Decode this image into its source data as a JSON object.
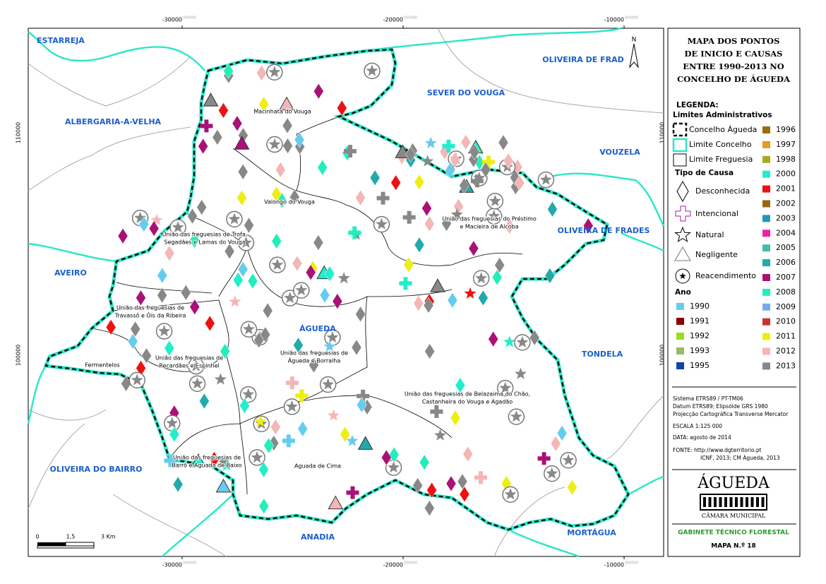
{
  "map": {
    "coordinates": {
      "top": [
        "-30000",
        "-20000",
        "-10000"
      ],
      "left": [
        "110000",
        "100000"
      ],
      "suffix": "000000"
    },
    "north": "N",
    "neighbors": [
      "ESTARREJA",
      "ALBERGARIA-A-VELHA",
      "SEVER DO VOUGA",
      "OLIVEIRA DE FRAD",
      "VOUZELA",
      "OLIVEIRA DE FRADES",
      "AVEIRO",
      "TONDELA",
      "OLIVEIRA DO BAIRRO",
      "MORTÁGUA",
      "ANADIA"
    ],
    "center": "ÁGUEDA",
    "parishes": [
      [
        "Macinhata do Vouga"
      ],
      [
        "Valongo do Vouga"
      ],
      [
        "União das freguesias do Préstimo",
        "e Macieira de Alcoba"
      ],
      [
        "União das freguesias de Trofa,",
        "Segadães e Lamas do Vouga"
      ],
      [
        "União das freguesias de",
        "Travassô e Óis da Ribeira"
      ],
      [
        "União das freguesias de",
        "Águeda e Borralha"
      ],
      [
        "Fermentelos"
      ],
      [
        "União das freguesias de",
        "Recardães e Espinhel"
      ],
      [
        "União das freguesias de Belazaima do Chão,",
        "Castanheira do Vouga e Agadão"
      ],
      [
        "União das freguesias de",
        "Barrô e Aguada de Baixo"
      ],
      [
        "Aguada de Cima"
      ]
    ],
    "scale": [
      "0",
      "1,5",
      "3 Km"
    ]
  },
  "sidebar": {
    "title": [
      "MAPA  DOS  PONTOS",
      "DE INICIO  E  CAUSAS",
      "ENTRE 1990-2013  NO",
      "CONCELHO DE ÁGUEDA"
    ],
    "legend_title": "LEGENDA:",
    "admin_heading": "Limites Administrativos",
    "admin_items": [
      "Concelho Águeda",
      "Limite Concelho",
      "Limite Freguesia"
    ],
    "cause_heading": "Tipo de Causa",
    "cause_items": [
      "Desconhecida",
      "Intencional",
      "Natural",
      "Negligente",
      "Reacendimento"
    ],
    "year_heading": "Ano",
    "years": [
      {
        "label": "1990",
        "color": "#66ccee"
      },
      {
        "label": "1991",
        "color": "#8b0000"
      },
      {
        "label": "1992",
        "color": "#99dd22"
      },
      {
        "label": "1993",
        "color": "#99bb66"
      },
      {
        "label": "1995",
        "color": "#1144aa"
      },
      {
        "label": "1996",
        "color": "#9c6a14"
      },
      {
        "label": "1997",
        "color": "#e69a1e"
      },
      {
        "label": "1998",
        "color": "#aaaa22"
      },
      {
        "label": "2000",
        "color": "#22eecc"
      },
      {
        "label": "2001",
        "color": "#ee1111"
      },
      {
        "label": "2002",
        "color": "#996611"
      },
      {
        "label": "2003",
        "color": "#2299bb"
      },
      {
        "label": "2004",
        "color": "#ee22aa"
      },
      {
        "label": "2005",
        "color": "#44bbaa"
      },
      {
        "label": "2006",
        "color": "#22aaaa"
      },
      {
        "label": "2007",
        "color": "#aa1177"
      },
      {
        "label": "2008",
        "color": "#22eebb"
      },
      {
        "label": "2009",
        "color": "#77aaee"
      },
      {
        "label": "2010",
        "color": "#cc3333"
      },
      {
        "label": "2011",
        "color": "#eeee11"
      },
      {
        "label": "2012",
        "color": "#f4b6b6"
      },
      {
        "label": "2013",
        "color": "#888888"
      }
    ],
    "metadata": [
      "Sistema ETRS89 / PT-TM06",
      "Datum ETRS89;  Elipsóide GRS 1980",
      "Projecção Cartográfica Transverse Mercator",
      "ESCALA  1:125 000",
      "DATA:    agosto de 2014",
      "FONTE: http://www.dgterritorio.pt",
      "ICNF, 2013;  CM Águeda, 2013"
    ],
    "logo": "ÁGUEDA",
    "logo_sub": "CÂMARA MUNICIPAL",
    "office": "GABINETE TÉCNICO FLORESTAL",
    "map_number": "MAPA N.º 18"
  }
}
